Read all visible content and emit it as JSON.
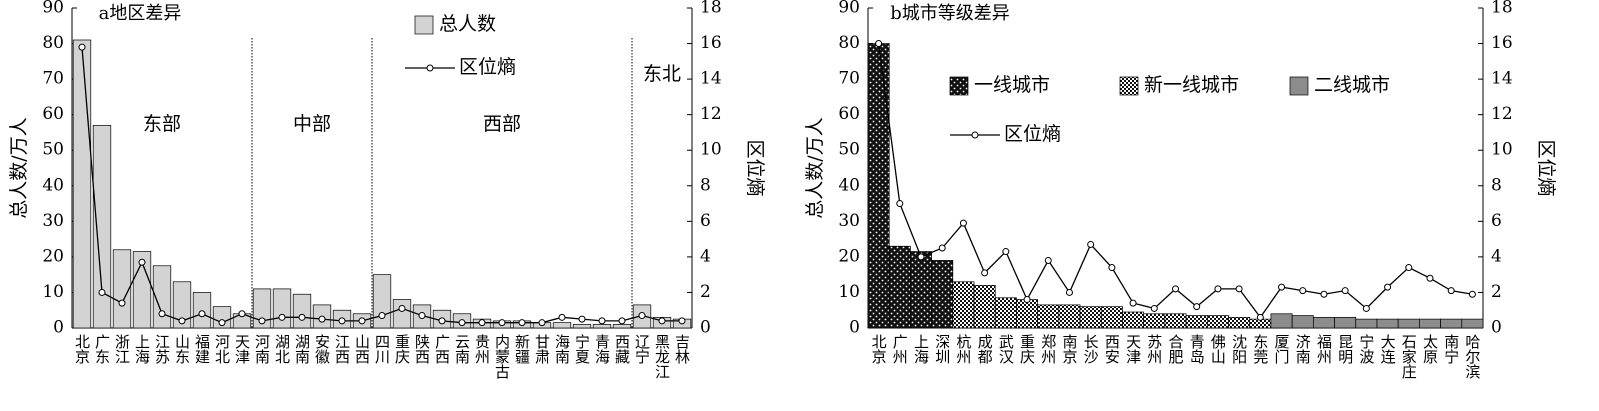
{
  "chart_data": [
    {
      "type": "bar",
      "title": "a地区差异",
      "ylabel": "总人数/万人",
      "y2label": "区位熵",
      "categories": [
        "北京",
        "广东",
        "浙江",
        "上海",
        "江苏",
        "山东",
        "福建",
        "河北",
        "天津",
        "河南",
        "湖北",
        "湖南",
        "安徽",
        "江西",
        "山西",
        "四川",
        "重庆",
        "陕西",
        "广西",
        "云南",
        "贵州",
        "内蒙古",
        "新疆",
        "甘肃",
        "海南",
        "宁夏",
        "青海",
        "西藏",
        "辽宁",
        "黑龙江",
        "吉林"
      ],
      "series": [
        {
          "name": "总人数",
          "type": "bar",
          "color": "#d3d3d3",
          "pattern": "solid",
          "values": [
            81,
            57,
            22,
            21.5,
            17.5,
            13,
            10,
            6,
            4,
            11,
            11,
            9.5,
            6.5,
            5,
            4,
            15,
            8,
            6.5,
            5,
            4,
            2.5,
            2,
            2,
            1.5,
            1.5,
            1,
            1,
            1,
            6.5,
            3,
            2.5
          ]
        },
        {
          "name": "区位熵",
          "type": "line",
          "axis": "y2",
          "color": "#000000",
          "values": [
            15.8,
            2,
            1.4,
            3.7,
            0.8,
            0.4,
            0.8,
            0.3,
            0.8,
            0.4,
            0.6,
            0.6,
            0.5,
            0.4,
            0.4,
            0.7,
            1.1,
            0.7,
            0.4,
            0.3,
            0.3,
            0.3,
            0.3,
            0.3,
            0.6,
            0.5,
            0.4,
            0.4,
            0.7,
            0.4,
            0.4
          ]
        }
      ],
      "groups": [
        {
          "label": "东部",
          "size": 9
        },
        {
          "label": "中部",
          "size": 6
        },
        {
          "label": "西部",
          "size": 13
        },
        {
          "label": "东北",
          "size": 3
        }
      ],
      "ylim": [
        0,
        90
      ],
      "yticks": [
        0,
        10,
        20,
        30,
        40,
        50,
        60,
        70,
        80,
        90
      ],
      "y2lim": [
        0,
        18
      ],
      "y2ticks": [
        0,
        2,
        4,
        6,
        8,
        10,
        12,
        14,
        16,
        18
      ]
    },
    {
      "type": "bar",
      "title": "b城市等级差异",
      "ylabel": "总人数/万人",
      "y2label": "区位熵",
      "categories": [
        "北京",
        "广州",
        "上海",
        "深圳",
        "杭州",
        "成都",
        "武汉",
        "重庆",
        "郑州",
        "南京",
        "长沙",
        "西安",
        "天津",
        "苏州",
        "合肥",
        "青岛",
        "佛山",
        "沈阳",
        "东莞",
        "厦门",
        "济南",
        "福州",
        "昆明",
        "宁波",
        "大连",
        "石家庄",
        "太原",
        "南宁",
        "哈尔滨"
      ],
      "series": [
        {
          "name": "一线城市",
          "type": "bar",
          "color": "#111111",
          "pattern": "dots",
          "values": [
            80,
            23,
            21.5,
            19,
            null,
            null,
            null,
            null,
            null,
            null,
            null,
            null,
            null,
            null,
            null,
            null,
            null,
            null,
            null,
            null,
            null,
            null,
            null,
            null,
            null,
            null,
            null,
            null,
            null
          ]
        },
        {
          "name": "新一线城市",
          "type": "bar",
          "color": "#111111",
          "pattern": "checker",
          "values": [
            null,
            null,
            null,
            null,
            13,
            12,
            8.5,
            8,
            6.5,
            6.5,
            6,
            6,
            4.5,
            4,
            4,
            3.5,
            3.5,
            3,
            2.5,
            null,
            null,
            null,
            null,
            null,
            null,
            null,
            null,
            null,
            null
          ]
        },
        {
          "name": "二线城市",
          "type": "bar",
          "color": "#8c8c8c",
          "pattern": "solid",
          "values": [
            null,
            null,
            null,
            null,
            null,
            null,
            null,
            null,
            null,
            null,
            null,
            null,
            null,
            null,
            null,
            null,
            null,
            null,
            null,
            4,
            3.5,
            3,
            3,
            2.5,
            2.5,
            2.5,
            2.5,
            2.5,
            2.5
          ]
        },
        {
          "name": "区位熵",
          "type": "line",
          "axis": "y2",
          "color": "#000000",
          "values": [
            16,
            7,
            4,
            4.5,
            5.9,
            3.1,
            4.3,
            1.6,
            3.8,
            2,
            4.7,
            3.4,
            1.4,
            1.1,
            2.2,
            1.2,
            2.2,
            2.2,
            0.6,
            2.3,
            2.1,
            1.9,
            2.1,
            1.1,
            2.3,
            3.4,
            2.8,
            2.1,
            1.9
          ]
        }
      ],
      "ylim": [
        0,
        90
      ],
      "yticks": [
        0,
        10,
        20,
        30,
        40,
        50,
        60,
        70,
        80,
        90
      ],
      "y2lim": [
        0,
        18
      ],
      "y2ticks": [
        0,
        2,
        4,
        6,
        8,
        10,
        12,
        14,
        16,
        18
      ]
    }
  ]
}
